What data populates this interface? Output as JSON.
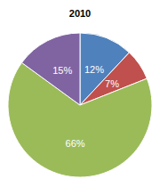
{
  "chart_data": {
    "type": "pie",
    "title": "2010",
    "values": [
      12,
      7,
      66,
      15
    ],
    "value_labels": [
      "12%",
      "7%",
      "66%",
      "15%"
    ],
    "colors": [
      "#4f81bd",
      "#c0504d",
      "#9bbb59",
      "#8064a2"
    ],
    "data_labels": true
  }
}
